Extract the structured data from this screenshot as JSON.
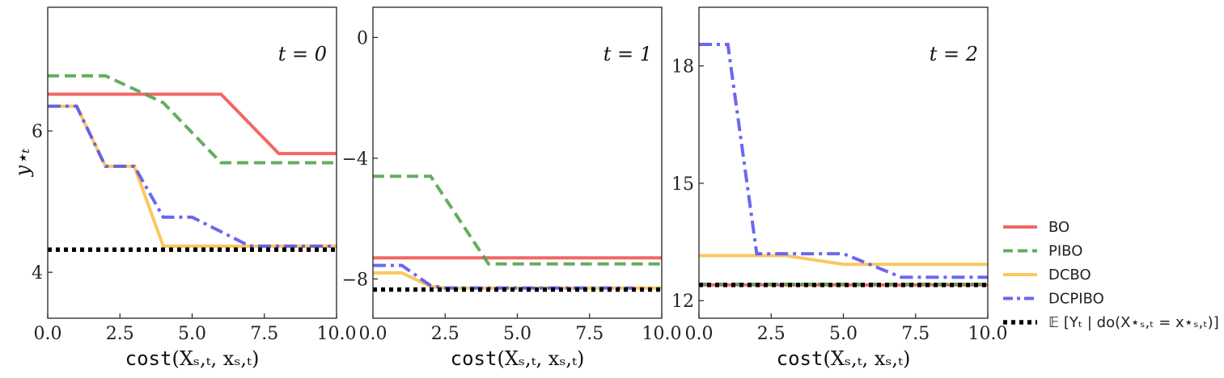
{
  "colors": {
    "BO": "#f0524f",
    "PIBO": "#4ea24f",
    "DCBO": "#fbbf4a",
    "DCPIBO": "#5552f0",
    "Truth": "#000000"
  },
  "legend": {
    "entries": [
      {
        "key": "BO",
        "label": "BO",
        "style": "solid"
      },
      {
        "key": "PIBO",
        "label": "PIBO",
        "style": "dashed"
      },
      {
        "key": "DCBO",
        "label": "DCBO",
        "style": "solid"
      },
      {
        "key": "DCPIBO",
        "label": "DCPIBO",
        "style": "dashdot"
      },
      {
        "key": "Truth",
        "label": "𝔼 [Yₜ | do(X⋆ₛ,ₜ = x⋆ₛ,ₜ)]",
        "style": "dotted"
      }
    ],
    "placement": "outside-right-bottom"
  },
  "ylabel": "y⋆ₜ",
  "xlabel_fn": "cost",
  "xlabel_args": "(Xₛ,ₜ, xₛ,ₜ)",
  "chart_data": [
    {
      "type": "line",
      "annotation": "t = 0",
      "xlim": [
        0,
        10
      ],
      "ylim": [
        3.35,
        7.75
      ],
      "xticks": [
        0,
        2.5,
        5,
        7.5,
        10
      ],
      "xtick_labels": [
        "0.0",
        "2.5",
        "5.0",
        "7.5",
        "10.0"
      ],
      "yticks": [
        4,
        6
      ],
      "ytick_labels": [
        "4",
        "6"
      ],
      "series": [
        {
          "name": "BO",
          "x": [
            0,
            6,
            8,
            10
          ],
          "y": [
            6.52,
            6.52,
            5.68,
            5.68
          ]
        },
        {
          "name": "PIBO",
          "x": [
            0,
            2,
            4,
            6,
            10
          ],
          "y": [
            6.78,
            6.78,
            6.4,
            5.55,
            5.55
          ]
        },
        {
          "name": "DCBO",
          "x": [
            0,
            1,
            2,
            3,
            4,
            10
          ],
          "y": [
            6.35,
            6.35,
            5.5,
            5.5,
            4.37,
            4.37
          ]
        },
        {
          "name": "DCPIBO",
          "x": [
            0,
            1,
            2,
            3,
            4,
            5,
            7,
            10
          ],
          "y": [
            6.35,
            6.35,
            5.5,
            5.5,
            4.78,
            4.78,
            4.37,
            4.37
          ]
        },
        {
          "name": "Truth",
          "x": [
            0,
            10
          ],
          "y": [
            4.32,
            4.32
          ]
        }
      ]
    },
    {
      "type": "line",
      "annotation": "t = 1",
      "xlim": [
        0,
        10
      ],
      "ylim": [
        -9.3,
        1.0
      ],
      "xticks": [
        0,
        2.5,
        5,
        7.5,
        10
      ],
      "xtick_labels": [
        "0.0",
        "2.5",
        "5.0",
        "7.5",
        "10.0"
      ],
      "yticks": [
        0,
        -4,
        -8
      ],
      "ytick_labels": [
        "0",
        "−4",
        "−8"
      ],
      "series": [
        {
          "name": "BO",
          "x": [
            0,
            10
          ],
          "y": [
            -7.3,
            -7.3
          ]
        },
        {
          "name": "PIBO",
          "x": [
            0,
            2,
            4,
            10
          ],
          "y": [
            -4.6,
            -4.6,
            -7.5,
            -7.5
          ]
        },
        {
          "name": "DCBO",
          "x": [
            0,
            1,
            2,
            2.5,
            10
          ],
          "y": [
            -7.8,
            -7.8,
            -8.25,
            -8.3,
            -8.3
          ]
        },
        {
          "name": "DCPIBO",
          "x": [
            0,
            1,
            2,
            2.5,
            9
          ],
          "y": [
            -7.55,
            -7.55,
            -8.22,
            -8.3,
            -8.3
          ]
        },
        {
          "name": "Truth",
          "x": [
            0,
            10
          ],
          "y": [
            -8.35,
            -8.35
          ]
        }
      ]
    },
    {
      "type": "line",
      "annotation": "t = 2",
      "xlim": [
        0,
        10
      ],
      "ylim": [
        11.55,
        19.5
      ],
      "xticks": [
        0,
        2.5,
        5,
        7.5,
        10
      ],
      "xtick_labels": [
        "0.0",
        "2.5",
        "5.0",
        "7.5",
        "10.0"
      ],
      "yticks": [
        12,
        15,
        18
      ],
      "ytick_labels": [
        "12",
        "15",
        "18"
      ],
      "series": [
        {
          "name": "BO",
          "x": [
            0,
            10
          ],
          "y": [
            12.4,
            12.4
          ]
        },
        {
          "name": "PIBO",
          "x": [
            0,
            10
          ],
          "y": [
            12.42,
            12.42
          ]
        },
        {
          "name": "DCBO",
          "x": [
            0,
            3,
            5,
            10
          ],
          "y": [
            13.15,
            13.15,
            12.93,
            12.93
          ]
        },
        {
          "name": "DCPIBO",
          "x": [
            0,
            1,
            2,
            5,
            7,
            10
          ],
          "y": [
            18.55,
            18.55,
            13.2,
            13.2,
            12.6,
            12.6
          ]
        },
        {
          "name": "Truth",
          "x": [
            0,
            10
          ],
          "y": [
            12.4,
            12.4
          ]
        }
      ]
    }
  ]
}
